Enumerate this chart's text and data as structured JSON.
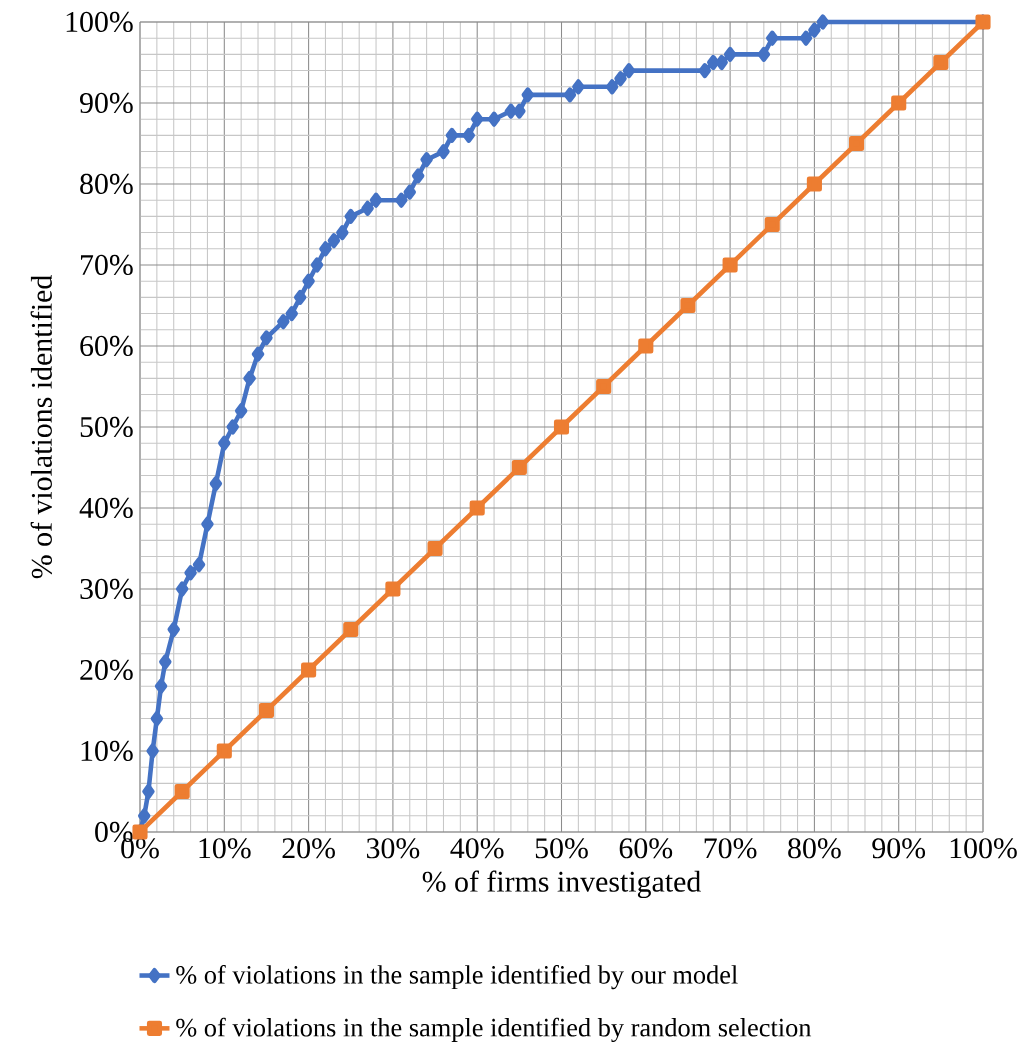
{
  "chart_data": {
    "type": "line",
    "xlabel": "% of firms investigated",
    "ylabel": "% of violations identified",
    "xlim": [
      0,
      100
    ],
    "ylim": [
      0,
      100
    ],
    "xticks": [
      {
        "value": 0,
        "label": "0%"
      },
      {
        "value": 10,
        "label": "10%"
      },
      {
        "value": 20,
        "label": "20%"
      },
      {
        "value": 30,
        "label": "30%"
      },
      {
        "value": 40,
        "label": "40%"
      },
      {
        "value": 50,
        "label": "50%"
      },
      {
        "value": 60,
        "label": "60%"
      },
      {
        "value": 70,
        "label": "70%"
      },
      {
        "value": 80,
        "label": "80%"
      },
      {
        "value": 90,
        "label": "90%"
      },
      {
        "value": 100,
        "label": "100%"
      }
    ],
    "yticks": [
      {
        "value": 0,
        "label": "0%"
      },
      {
        "value": 10,
        "label": "10%"
      },
      {
        "value": 20,
        "label": "20%"
      },
      {
        "value": 30,
        "label": "30%"
      },
      {
        "value": 40,
        "label": "40%"
      },
      {
        "value": 50,
        "label": "50%"
      },
      {
        "value": 60,
        "label": "60%"
      },
      {
        "value": 70,
        "label": "70%"
      },
      {
        "value": 80,
        "label": "80%"
      },
      {
        "value": 90,
        "label": "90%"
      },
      {
        "value": 100,
        "label": "100%"
      }
    ],
    "grid": true,
    "legend": "bottom",
    "series": [
      {
        "name": "% of violations in the sample identified by our model",
        "color": "#4472c4",
        "marker": "diamond",
        "x": [
          0,
          0.5,
          1,
          1.5,
          2,
          2.5,
          3,
          4,
          5,
          6,
          7,
          8,
          9,
          10,
          11,
          12,
          13,
          14,
          15,
          17,
          18,
          19,
          20,
          21,
          22,
          23,
          24,
          25,
          27,
          28,
          31,
          32,
          33,
          34,
          36,
          37,
          39,
          40,
          42,
          44,
          45,
          46,
          51,
          52,
          56,
          57,
          58,
          67,
          68,
          69,
          70,
          74,
          75,
          79,
          80,
          81,
          100
        ],
        "values": [
          0,
          2,
          5,
          10,
          14,
          18,
          21,
          25,
          30,
          32,
          33,
          38,
          43,
          48,
          50,
          52,
          56,
          59,
          61,
          63,
          64,
          66,
          68,
          70,
          72,
          73,
          74,
          76,
          77,
          78,
          78,
          79,
          81,
          83,
          84,
          86,
          86,
          88,
          88,
          89,
          89,
          91,
          91,
          92,
          92,
          93,
          94,
          94,
          95,
          95,
          96,
          96,
          98,
          98,
          99,
          100,
          100
        ]
      },
      {
        "name": "% of violations in the sample identified by random selection",
        "color": "#ed7d31",
        "marker": "square",
        "x": [
          0,
          5,
          10,
          15,
          20,
          25,
          30,
          35,
          40,
          45,
          50,
          55,
          60,
          65,
          70,
          75,
          80,
          85,
          90,
          95,
          100
        ],
        "values": [
          0,
          5,
          10,
          15,
          20,
          25,
          30,
          35,
          40,
          45,
          50,
          55,
          60,
          65,
          70,
          75,
          80,
          85,
          90,
          95,
          100
        ]
      }
    ]
  }
}
